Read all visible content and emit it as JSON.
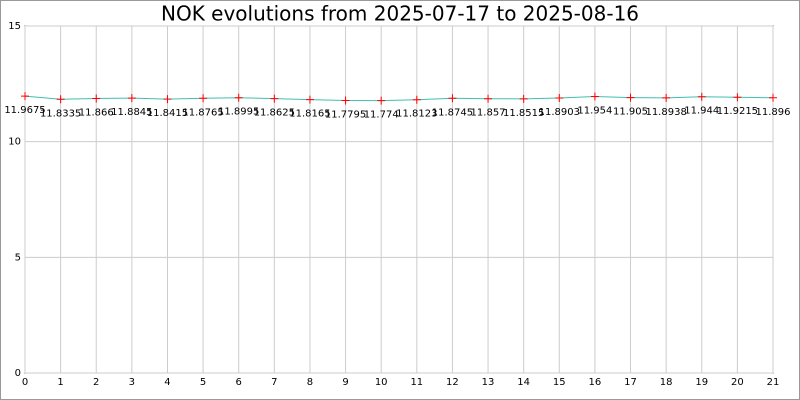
{
  "chart_data": {
    "type": "line",
    "title": "NOK evolutions from 2025-07-17 to 2025-08-16",
    "x": [
      0,
      1,
      2,
      3,
      4,
      5,
      6,
      7,
      8,
      9,
      10,
      11,
      12,
      13,
      14,
      15,
      16,
      17,
      18,
      19,
      20,
      21
    ],
    "values": [
      11.9675,
      11.8335,
      11.866,
      11.8845,
      11.8415,
      11.8765,
      11.8995,
      11.8625,
      11.8165,
      11.7795,
      11.774,
      11.8123,
      11.8745,
      11.857,
      11.8515,
      11.8903,
      11.954,
      11.905,
      11.8938,
      11.944,
      11.9215,
      11.896
    ],
    "line_color": "#40c0b0",
    "marker_color": "#ff0000",
    "xlim": [
      0,
      21
    ],
    "xticks": [
      0,
      1,
      2,
      3,
      4,
      5,
      6,
      7,
      8,
      9,
      10,
      11,
      12,
      13,
      14,
      15,
      16,
      17,
      18,
      19,
      20,
      21
    ],
    "ylim": [
      0,
      15
    ],
    "yticks": [
      0,
      5,
      10,
      15
    ],
    "grid": true
  }
}
